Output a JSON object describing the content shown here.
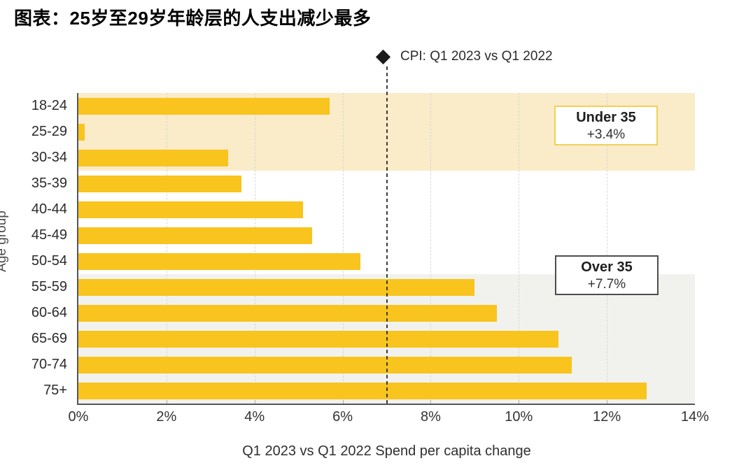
{
  "title": "图表：25岁至29岁年龄层的人支出减少最多",
  "legend": {
    "marker": "diamond-icon",
    "label": "CPI: Q1 2023 vs Q1 2022"
  },
  "chart_data": {
    "type": "bar",
    "orientation": "horizontal",
    "title": "图表：25岁至29岁年龄层的人支出减少最多",
    "categories": [
      "18-24",
      "25-29",
      "30-34",
      "35-39",
      "40-44",
      "45-49",
      "50-54",
      "55-59",
      "60-64",
      "65-69",
      "70-74",
      "75+"
    ],
    "values": [
      5.7,
      0.15,
      3.4,
      3.7,
      5.1,
      5.3,
      6.4,
      9.0,
      9.5,
      10.9,
      11.2,
      12.9
    ],
    "xlabel": "Q1 2023 vs Q1 2022 Spend per capita change",
    "ylabel": "Age group",
    "xlim": [
      0,
      14
    ],
    "x_ticks": [
      "0%",
      "2%",
      "4%",
      "6%",
      "8%",
      "10%",
      "12%",
      "14%"
    ],
    "x_tick_values": [
      0,
      2,
      4,
      6,
      8,
      10,
      12,
      14
    ],
    "grid": "vertical-dashed",
    "legend_position": "top",
    "bar_color": "#f8c41d",
    "reference_line": {
      "value": 7,
      "label": "CPI: Q1 2023 vs Q1 2022",
      "style": "dashed",
      "color": "#3c3c3c"
    },
    "regions": [
      {
        "label": "Under 35",
        "value_label": "+3.4%",
        "rows": [
          0,
          3
        ],
        "color": "#faebc9",
        "box_border": "#efd257"
      },
      {
        "label": "Over 35",
        "value_label": "+7.7%",
        "rows": [
          7,
          12
        ],
        "color": "#f1f1ee",
        "box_border": "#4d4d4d"
      }
    ]
  },
  "colors": {
    "bar": "#f8c41d",
    "under35_band": "#faebc9",
    "over35_band": "#f1f1ee",
    "axis": "#55565a",
    "gridline": "#d7d7d2",
    "text": "#2b2b2b",
    "reference_line": "#3c3c3c"
  }
}
